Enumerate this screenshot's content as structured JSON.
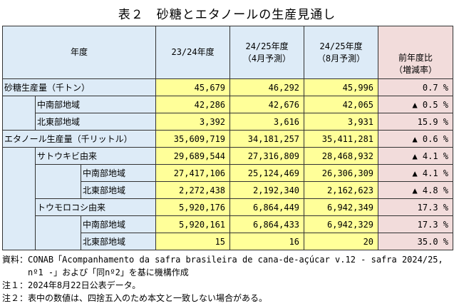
{
  "title": "表２　砂糖とエタノールの生産見通し",
  "header": {
    "year_label": "年度",
    "col1": "23/24年度",
    "col2_l1": "24/25年度",
    "col2_l2": "（4月予測）",
    "col3_l1": "24/25年度",
    "col3_l2": "（8月予測）",
    "col4_l1": "前年度比",
    "col4_l2": "（増減率）"
  },
  "rows": [
    {
      "label": "砂糖生産量（千トン）",
      "v1": "45,679",
      "v2": "46,292",
      "v3": "45,996",
      "pct": "0.7 %"
    },
    {
      "label": "中南部地域",
      "v1": "42,286",
      "v2": "42,676",
      "v3": "42,065",
      "pct": "▲ 0.5 %"
    },
    {
      "label": "北東部地域",
      "v1": "3,392",
      "v2": "3,616",
      "v3": "3,931",
      "pct": "15.9 %"
    },
    {
      "label": "エタノール生産量（千リットル）",
      "v1": "35,609,719",
      "v2": "34,181,257",
      "v3": "35,411,281",
      "pct": "▲ 0.6 %"
    },
    {
      "label": "サトウキビ由来",
      "v1": "29,689,544",
      "v2": "27,316,809",
      "v3": "28,468,932",
      "pct": "▲ 4.1 %"
    },
    {
      "label": "中南部地域",
      "v1": "27,417,106",
      "v2": "25,124,469",
      "v3": "26,306,309",
      "pct": "▲ 4.1 %"
    },
    {
      "label": "北東部地域",
      "v1": "2,272,438",
      "v2": "2,192,340",
      "v3": "2,162,623",
      "pct": "▲ 4.8 %"
    },
    {
      "label": "トウモロコシ由来",
      "v1": "5,920,176",
      "v2": "6,864,449",
      "v3": "6,942,349",
      "pct": "17.3 %"
    },
    {
      "label": "中南部地域",
      "v1": "5,920,161",
      "v2": "6,864,433",
      "v3": "6,942,329",
      "pct": "17.3 %"
    },
    {
      "label": "北東部地域",
      "v1": "15",
      "v2": "16",
      "v3": "20",
      "pct": "35.0 %"
    }
  ],
  "notes": {
    "source_l1": "資料：CONAB「Acompanhamento da safra brasileira de cana-de-açúcar v.12 - safra 2024/25,",
    "source_l2": "　　　nº1 -」および「同nº2」を基に機構作成",
    "note1": "注１：2024年8月22日公表データ。",
    "note2": "注２：表中の数値は、四捨五入のため本文と一致しない場合がある。"
  },
  "colors": {
    "header_bg": "#ddebf7",
    "value_bg": "#ffff99",
    "ratio_bg": "#f2dcdb"
  }
}
